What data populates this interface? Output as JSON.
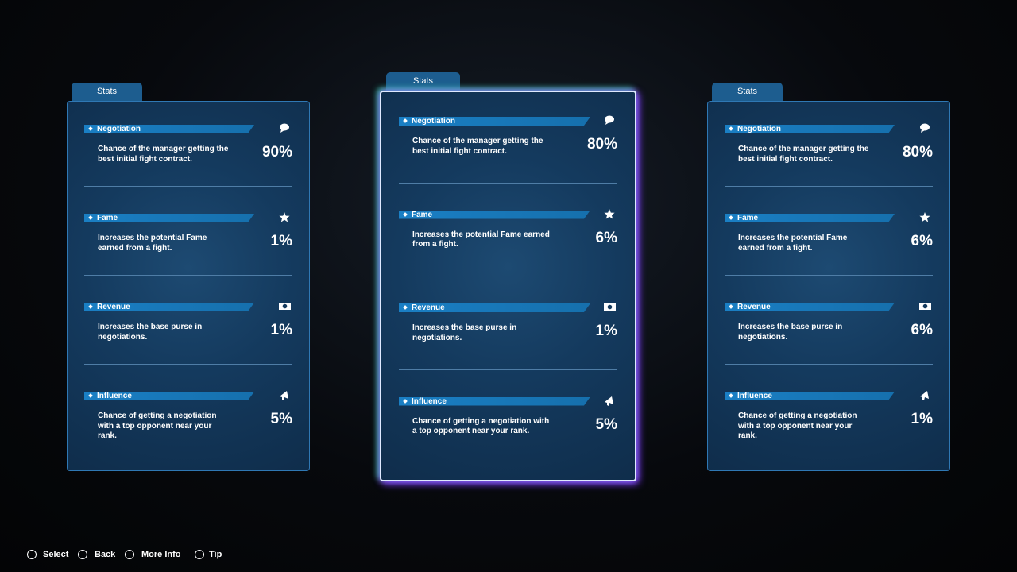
{
  "cards": [
    {
      "tab": "Stats",
      "stats": [
        {
          "name": "Negotiation",
          "description": "Chance of the manager getting the best initial fight contract.",
          "value": "90%"
        },
        {
          "name": "Fame",
          "description": "Increases the potential Fame earned from a fight.",
          "value": "1%"
        },
        {
          "name": "Revenue",
          "description": "Increases the base purse in negotiations.",
          "value": "1%"
        },
        {
          "name": "Influence",
          "description": "Chance of getting a negotiation with a top opponent near your rank.",
          "value": "5%"
        }
      ]
    },
    {
      "tab": "Stats",
      "stats": [
        {
          "name": "Negotiation",
          "description": "Chance of the manager getting the best initial fight contract.",
          "value": "80%"
        },
        {
          "name": "Fame",
          "description": "Increases the potential Fame earned from a fight.",
          "value": "6%"
        },
        {
          "name": "Revenue",
          "description": "Increases the base purse in negotiations.",
          "value": "1%"
        },
        {
          "name": "Influence",
          "description": "Chance of getting a negotiation with a top opponent near your rank.",
          "value": "5%"
        }
      ]
    },
    {
      "tab": "Stats",
      "stats": [
        {
          "name": "Negotiation",
          "description": "Chance of the manager getting the best initial fight contract.",
          "value": "80%"
        },
        {
          "name": "Fame",
          "description": "Increases the potential Fame earned from a fight.",
          "value": "6%"
        },
        {
          "name": "Revenue",
          "description": "Increases the base purse in negotiations.",
          "value": "6%"
        },
        {
          "name": "Influence",
          "description": "Chance of getting a negotiation with a top opponent near your rank.",
          "value": "1%"
        }
      ]
    }
  ],
  "footer": [
    {
      "label": "Select"
    },
    {
      "label": "Back"
    },
    {
      "label": "More Info"
    },
    {
      "label": "Tip"
    }
  ]
}
